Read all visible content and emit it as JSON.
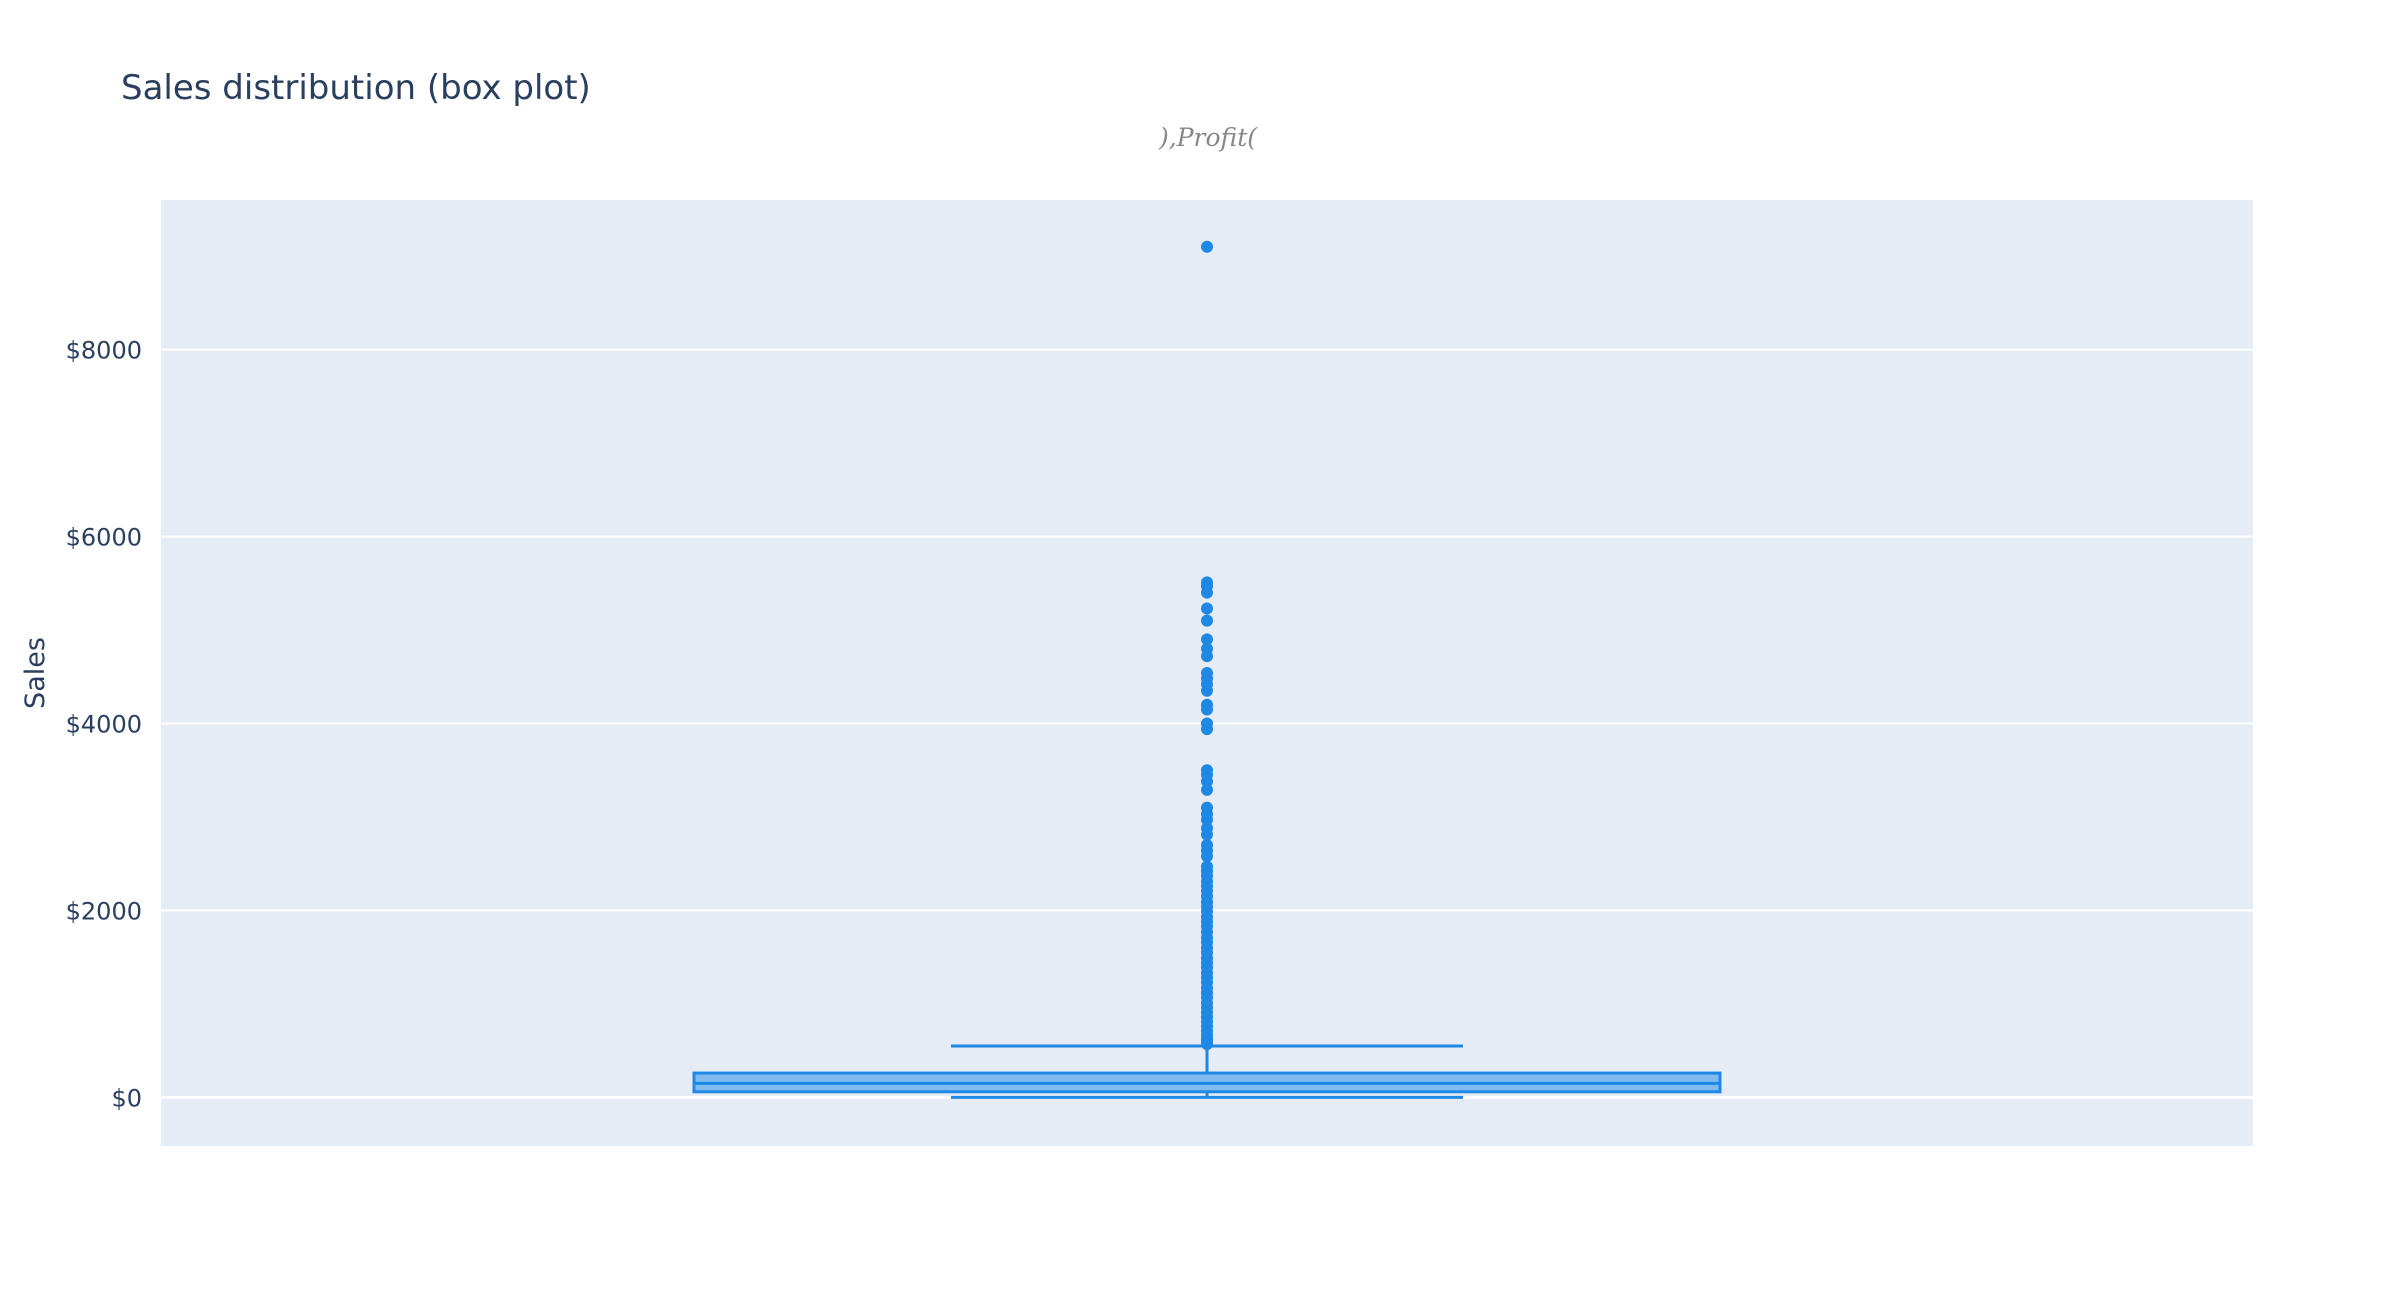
{
  "chart_data": {
    "type": "box",
    "title": "Sales distribution (box plot)",
    "subtitle": "),Profit(",
    "xlabel": "",
    "ylabel": "Sales",
    "ylim": [
      -520,
      9600
    ],
    "yticks": [
      0,
      2000,
      4000,
      6000,
      8000
    ],
    "ytick_labels": [
      "$0",
      "$2000",
      "$4000",
      "$6000",
      "$8000"
    ],
    "grid": true,
    "legend": "none",
    "series": [
      {
        "min": 0,
        "q1": 60,
        "median": 150,
        "q3": 260,
        "upper_fence": 550,
        "outliers": [
          9100,
          5510,
          5470,
          5400,
          5230,
          5100,
          4900,
          4800,
          4720,
          4540,
          4480,
          4420,
          4350,
          4200,
          4150,
          4000,
          3940,
          3500,
          3450,
          3380,
          3290,
          3100,
          3030,
          2970,
          2880,
          2810,
          2700,
          2640,
          2580,
          2470,
          2420,
          2370,
          2310,
          2260,
          2210,
          2150,
          2090,
          2040,
          1990,
          1930,
          1880,
          1830,
          1770,
          1710,
          1660,
          1600,
          1550,
          1490,
          1440,
          1390,
          1330,
          1280,
          1230,
          1170,
          1120,
          1070,
          1010,
          960,
          910,
          860,
          810,
          760,
          710,
          670,
          630,
          600,
          570
        ]
      }
    ]
  },
  "colors": {
    "plot_bg": "#e5ecf6",
    "grid": "#ffffff",
    "text": "#2a3f5f",
    "box_line": "#1e88e5",
    "box_fill": "#1e88e5",
    "subtitle": "#888888"
  }
}
